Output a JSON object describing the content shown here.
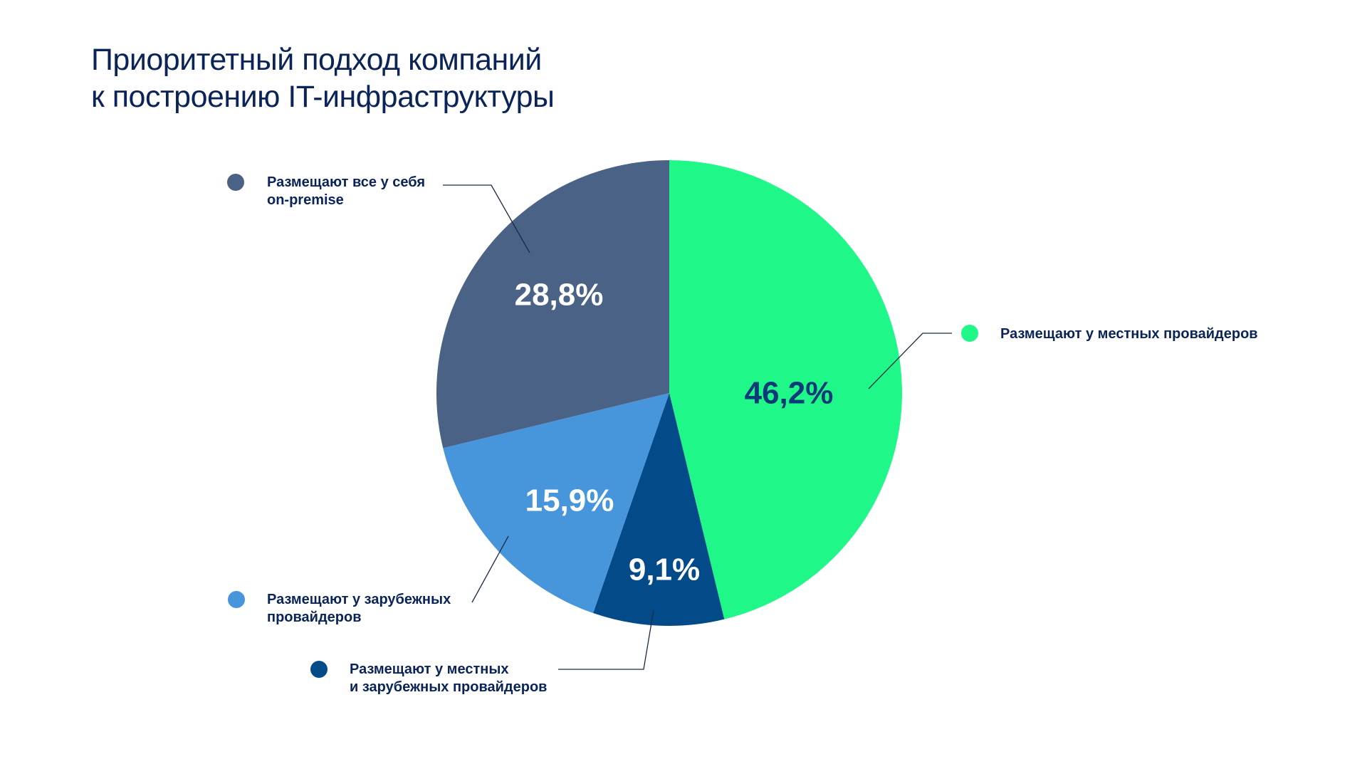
{
  "title": {
    "line1": "Приоритетный подход компаний",
    "line2": "к построению IT-инфраструктуры"
  },
  "chart_data": {
    "type": "pie",
    "title": "Приоритетный подход компаний к построению IT-инфраструктуры",
    "start_angle_deg": 0,
    "direction": "clockwise",
    "slices": [
      {
        "value": 46.2,
        "value_label": "46,2%",
        "legend": [
          "Размещают у местных провайдеров"
        ],
        "color": "#1ff788",
        "label_color": "#0b3a78"
      },
      {
        "value": 9.1,
        "value_label": "9,1%",
        "legend": [
          "Размещают у местных",
          "и зарубежных провайдеров"
        ],
        "color": "#034a89",
        "label_color": "#ffffff"
      },
      {
        "value": 15.9,
        "value_label": "15,9%",
        "legend": [
          "Размещают у зарубежных",
          "провайдеров"
        ],
        "color": "#4796db",
        "label_color": "#ffffff"
      },
      {
        "value": 28.8,
        "value_label": "28,8%",
        "legend": [
          "Размещают все у себя",
          "on-premise"
        ],
        "color": "#4a6286",
        "label_color": "#ffffff"
      }
    ]
  }
}
